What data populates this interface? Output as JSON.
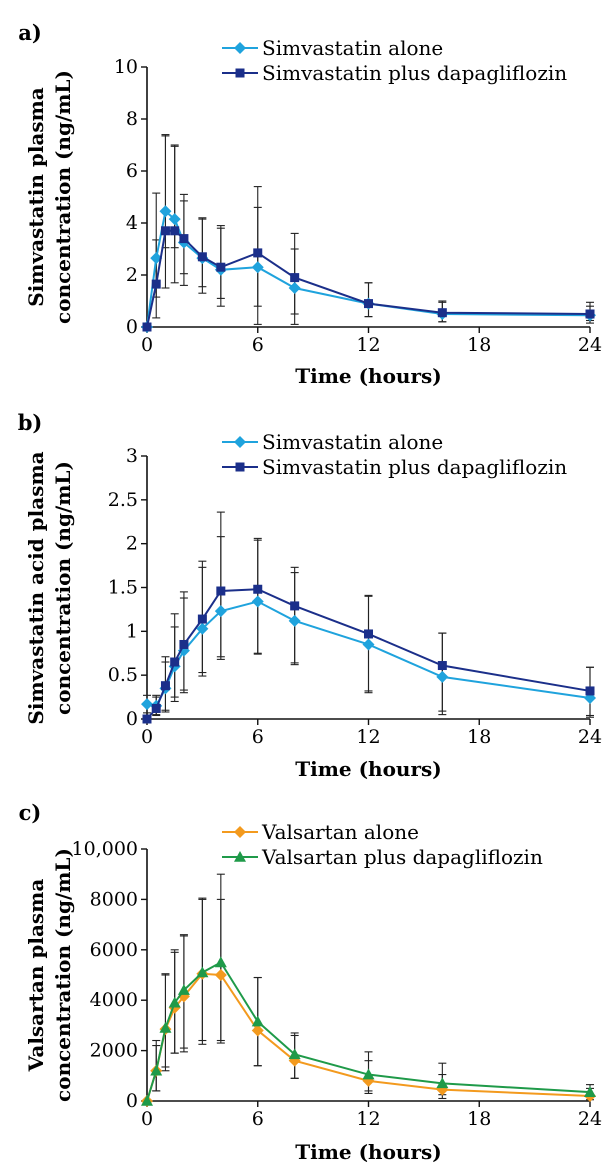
{
  "chart_data": [
    {
      "panel_label": "a)",
      "type": "line",
      "xlabel": "Time (hours)",
      "ylabel_lines": [
        "Simvastatin plasma",
        "concentration (ng/mL)"
      ],
      "xlim": [
        0,
        24
      ],
      "ylim": [
        0,
        10
      ],
      "xticks": [
        0,
        6,
        12,
        18,
        24
      ],
      "yticks": [
        0,
        2,
        4,
        6,
        8,
        10
      ],
      "ytick_labels": [
        "0",
        "2",
        "4",
        "6",
        "8",
        "10"
      ],
      "legend_position": "top-right",
      "series": [
        {
          "name": "Simvastatin alone",
          "color": "#1fa3dd",
          "marker": "diamond",
          "x": [
            0,
            0.5,
            1,
            1.5,
            2,
            3,
            4,
            6,
            8,
            12,
            16,
            24
          ],
          "y": [
            0.0,
            2.65,
            4.45,
            4.15,
            3.25,
            2.65,
            2.2,
            2.3,
            1.5,
            0.9,
            0.5,
            0.45
          ],
          "err_low": [
            0.0,
            1.5,
            1.4,
            1.1,
            1.2,
            1.1,
            1.1,
            1.5,
            1.0,
            0.5,
            0.3,
            0.2
          ],
          "err_high": [
            0.0,
            2.5,
            2.9,
            2.8,
            1.6,
            1.5,
            1.6,
            2.3,
            1.5,
            0.8,
            0.45,
            0.35
          ]
        },
        {
          "name": "Simvastatin plus dapagliflozin",
          "color": "#1b2f8a",
          "marker": "square",
          "x": [
            0,
            0.5,
            1,
            1.5,
            2,
            3,
            4,
            6,
            8,
            12,
            16,
            24
          ],
          "y": [
            0.0,
            1.65,
            3.7,
            3.7,
            3.4,
            2.7,
            2.3,
            2.85,
            1.9,
            0.9,
            0.55,
            0.5
          ],
          "err_low": [
            0.0,
            1.3,
            2.2,
            2.0,
            1.8,
            1.4,
            1.5,
            2.75,
            1.8,
            0.5,
            0.35,
            0.35
          ],
          "err_high": [
            0.0,
            1.7,
            3.7,
            3.3,
            1.7,
            1.5,
            1.6,
            2.55,
            1.7,
            0.8,
            0.45,
            0.45
          ]
        }
      ]
    },
    {
      "panel_label": "b)",
      "type": "line",
      "xlabel": "Time (hours)",
      "ylabel_lines": [
        "Simvastatin acid plasma",
        "concentration (ng/mL)"
      ],
      "xlim": [
        0,
        24
      ],
      "ylim": [
        0,
        3
      ],
      "xticks": [
        0,
        6,
        12,
        18,
        24
      ],
      "yticks": [
        0,
        0.5,
        1,
        1.5,
        2,
        2.5,
        3
      ],
      "ytick_labels": [
        "0",
        "0.5",
        "1",
        "1.5",
        "2",
        "2.5",
        "3"
      ],
      "legend_position": "top-right",
      "series": [
        {
          "name": "Simvastatin alone",
          "color": "#1fa3dd",
          "marker": "diamond",
          "x": [
            0,
            0.5,
            1,
            1.5,
            2,
            3,
            4,
            6,
            8,
            12,
            16,
            24
          ],
          "y": [
            0.17,
            0.15,
            0.35,
            0.6,
            0.78,
            1.03,
            1.23,
            1.34,
            1.12,
            0.85,
            0.48,
            0.24
          ],
          "err_low": [
            0.1,
            0.1,
            0.25,
            0.35,
            0.45,
            0.5,
            0.55,
            0.6,
            0.5,
            0.55,
            0.43,
            0.2
          ],
          "err_high": [
            0.1,
            0.1,
            0.3,
            0.45,
            0.6,
            0.7,
            0.85,
            0.7,
            0.55,
            0.55,
            0.5,
            0.35
          ]
        },
        {
          "name": "Simvastatin plus dapagliflozin",
          "color": "#1b2f8a",
          "marker": "square",
          "x": [
            0,
            0.5,
            1,
            1.5,
            2,
            3,
            4,
            6,
            8,
            12,
            16,
            24
          ],
          "y": [
            0.0,
            0.12,
            0.38,
            0.65,
            0.85,
            1.14,
            1.46,
            1.48,
            1.29,
            0.97,
            0.61,
            0.32
          ],
          "err_low": [
            0.0,
            0.08,
            0.3,
            0.45,
            0.55,
            0.65,
            0.75,
            0.73,
            0.65,
            0.65,
            0.52,
            0.3
          ],
          "err_high": [
            0.0,
            0.15,
            0.33,
            0.55,
            0.6,
            0.66,
            0.9,
            0.58,
            0.44,
            0.44,
            0.37,
            0.27
          ]
        }
      ]
    },
    {
      "panel_label": "c)",
      "type": "line",
      "xlabel": "Time (hours)",
      "ylabel_lines": [
        "Valsartan plasma",
        "concentration (ng/mL)"
      ],
      "xlim": [
        0,
        24
      ],
      "ylim": [
        0,
        10000
      ],
      "xticks": [
        0,
        6,
        12,
        18,
        24
      ],
      "yticks": [
        0,
        2000,
        4000,
        6000,
        8000,
        10000
      ],
      "ytick_labels": [
        "0",
        "2000",
        "4000",
        "6000",
        "8000",
        "10,000"
      ],
      "legend_position": "top-right",
      "series": [
        {
          "name": "Valsartan alone",
          "color": "#f39a1e",
          "marker": "diamond",
          "x": [
            0,
            0.5,
            1,
            1.5,
            2,
            3,
            4,
            6,
            8,
            12,
            16,
            24
          ],
          "y": [
            0,
            1200,
            2850,
            3700,
            4150,
            5050,
            5000,
            2800,
            1600,
            800,
            450,
            200
          ],
          "err_low": [
            0,
            800,
            1500,
            1800,
            2200,
            2800,
            2700,
            1400,
            700,
            500,
            350,
            150
          ],
          "err_high": [
            0,
            1000,
            2200,
            2200,
            2400,
            3000,
            3000,
            2100,
            1000,
            800,
            600,
            300
          ]
        },
        {
          "name": "Valsartan plus dapagliflozin",
          "color": "#1f9a49",
          "marker": "triangle",
          "x": [
            0,
            0.5,
            1,
            1.5,
            2,
            3,
            4,
            6,
            8,
            12,
            16,
            24
          ],
          "y": [
            0,
            1200,
            2900,
            3900,
            4400,
            5100,
            5500,
            3150,
            1850,
            1050,
            700,
            350
          ],
          "err_low": [
            0,
            800,
            1700,
            2000,
            2300,
            2700,
            3100,
            1750,
            950,
            650,
            450,
            200
          ],
          "err_high": [
            0,
            1200,
            2100,
            2100,
            2200,
            2900,
            3500,
            1750,
            850,
            900,
            800,
            300
          ]
        }
      ]
    }
  ]
}
